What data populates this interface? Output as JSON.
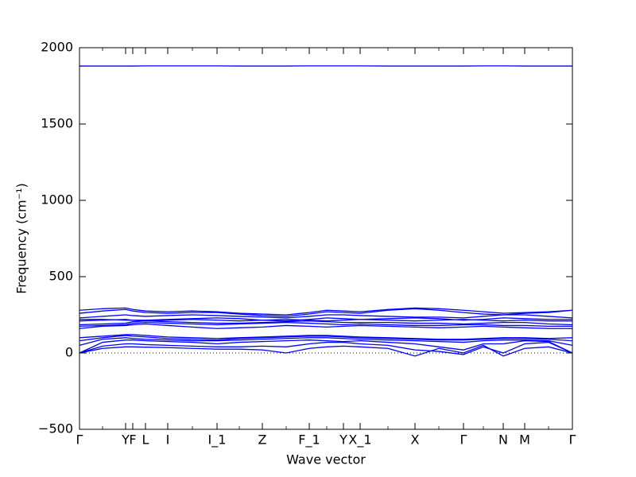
{
  "chart_data": {
    "type": "line",
    "xlabel": "Wave vector",
    "ylabel": "Frequency (cm⁻¹)",
    "x": [
      0,
      29,
      58,
      67,
      83,
      111,
      142,
      173,
      201,
      230,
      260,
      289,
      311,
      332,
      353,
      388,
      422,
      452,
      483,
      508,
      533,
      560,
      590,
      620
    ],
    "xlim": [
      0,
      620
    ],
    "xticks": [
      {
        "value": 0,
        "label": "Γ"
      },
      {
        "value": 58,
        "label": "Y"
      },
      {
        "value": 67,
        "label": "F"
      },
      {
        "value": 83,
        "label": "L"
      },
      {
        "value": 111,
        "label": "I"
      },
      {
        "value": 173,
        "label": "I_1"
      },
      {
        "value": 230,
        "label": "Z"
      },
      {
        "value": 289,
        "label": "F_1"
      },
      {
        "value": 332,
        "label": "Y"
      },
      {
        "value": 353,
        "label": "X_1"
      },
      {
        "value": 422,
        "label": "X"
      },
      {
        "value": 483,
        "label": "Γ"
      },
      {
        "value": 533,
        "label": "N"
      },
      {
        "value": 560,
        "label": "M"
      },
      {
        "value": 620,
        "label": "Γ"
      }
    ],
    "ylim": [
      -500,
      2000
    ],
    "yticks": [
      {
        "value": -500,
        "label": "−500"
      },
      0,
      500,
      1000,
      1500,
      2000
    ],
    "series": [
      {
        "color": "#0000ff",
        "values": [
          1880,
          1880,
          1880,
          1880,
          1881,
          1881,
          1881,
          1881,
          1880,
          1880,
          1880,
          1881,
          1881,
          1881,
          1881,
          1880,
          1880,
          1880,
          1880,
          1881,
          1881,
          1880,
          1880,
          1880
        ]
      },
      {
        "color": "#0000ff",
        "values": [
          0,
          30,
          40,
          40,
          38,
          35,
          30,
          25,
          25,
          20,
          0,
          30,
          40,
          45,
          40,
          30,
          -20,
          30,
          0,
          50,
          -20,
          30,
          40,
          0
        ]
      },
      {
        "color": "#0000ff",
        "values": [
          0,
          45,
          60,
          60,
          55,
          50,
          45,
          40,
          40,
          45,
          40,
          60,
          70,
          70,
          60,
          50,
          20,
          10,
          -10,
          40,
          0,
          60,
          70,
          0
        ]
      },
      {
        "color": "#0000ff",
        "values": [
          0,
          70,
          85,
          85,
          80,
          75,
          70,
          60,
          70,
          75,
          80,
          85,
          80,
          75,
          80,
          70,
          60,
          40,
          20,
          60,
          60,
          80,
          75,
          0
        ]
      },
      {
        "color": "#0000ff",
        "values": [
          50,
          90,
          100,
          95,
          90,
          85,
          80,
          80,
          85,
          90,
          95,
          100,
          100,
          95,
          90,
          85,
          80,
          75,
          70,
          80,
          85,
          85,
          80,
          50
        ]
      },
      {
        "color": "#0000ff",
        "values": [
          80,
          100,
          115,
          110,
          105,
          95,
          90,
          85,
          95,
          100,
          105,
          110,
          110,
          105,
          100,
          95,
          90,
          85,
          85,
          90,
          95,
          95,
          90,
          80
        ]
      },
      {
        "color": "#0000ff",
        "values": [
          100,
          110,
          120,
          120,
          115,
          105,
          100,
          95,
          100,
          105,
          110,
          115,
          115,
          110,
          105,
          100,
          95,
          90,
          90,
          95,
          100,
          100,
          95,
          100
        ]
      },
      {
        "color": "#0000ff",
        "values": [
          160,
          175,
          180,
          185,
          190,
          180,
          170,
          160,
          165,
          170,
          180,
          175,
          170,
          175,
          180,
          175,
          170,
          165,
          170,
          175,
          170,
          165,
          160,
          160
        ]
      },
      {
        "color": "#0000ff",
        "values": [
          175,
          180,
          185,
          195,
          200,
          195,
          190,
          185,
          190,
          195,
          200,
          195,
          190,
          185,
          190,
          185,
          180,
          180,
          185,
          185,
          180,
          180,
          175,
          175
        ]
      },
      {
        "color": "#0000ff",
        "values": [
          185,
          190,
          195,
          205,
          210,
          205,
          200,
          195,
          195,
          200,
          205,
          210,
          205,
          200,
          200,
          200,
          195,
          195,
          190,
          195,
          200,
          200,
          190,
          185
        ]
      },
      {
        "color": "#0000ff",
        "values": [
          210,
          215,
          220,
          215,
          210,
          215,
          220,
          215,
          210,
          215,
          220,
          215,
          210,
          215,
          220,
          215,
          210,
          215,
          220,
          215,
          210,
          215,
          210,
          210
        ]
      },
      {
        "color": "#0000ff",
        "values": [
          220,
          220,
          215,
          215,
          215,
          220,
          225,
          230,
          225,
          215,
          210,
          220,
          230,
          225,
          220,
          225,
          230,
          225,
          215,
          220,
          230,
          225,
          220,
          220
        ]
      },
      {
        "color": "#0000ff",
        "values": [
          230,
          240,
          250,
          245,
          240,
          245,
          250,
          245,
          240,
          235,
          230,
          240,
          250,
          250,
          245,
          240,
          235,
          235,
          230,
          240,
          250,
          250,
          240,
          230
        ]
      },
      {
        "color": "#0000ff",
        "values": [
          260,
          275,
          285,
          275,
          265,
          260,
          265,
          265,
          255,
          245,
          240,
          255,
          270,
          265,
          260,
          280,
          290,
          280,
          265,
          255,
          250,
          260,
          265,
          280
        ]
      },
      {
        "color": "#0000ff",
        "values": [
          280,
          290,
          295,
          285,
          275,
          270,
          275,
          270,
          260,
          255,
          250,
          265,
          280,
          275,
          270,
          285,
          295,
          290,
          280,
          270,
          260,
          265,
          270,
          280
        ]
      }
    ]
  }
}
